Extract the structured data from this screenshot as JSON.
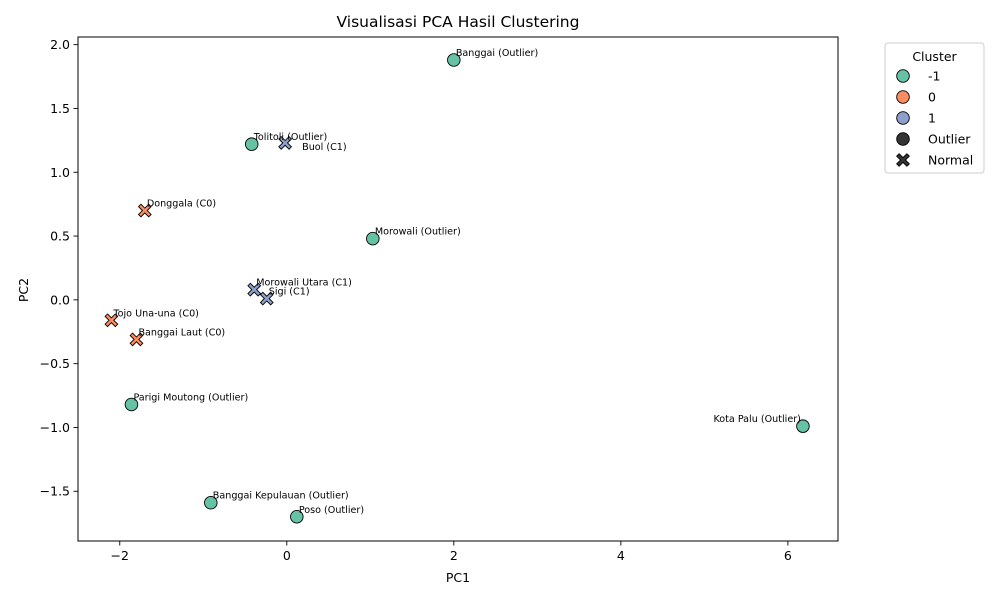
{
  "chart_data": {
    "type": "scatter",
    "title": "Visualisasi PCA Hasil Clustering",
    "xlabel": "PC1",
    "ylabel": "PC2",
    "xlim": [
      -2.5,
      6.6
    ],
    "ylim": [
      -1.89,
      2.06
    ],
    "xticks": [
      -2,
      0,
      2,
      4,
      6
    ],
    "yticks": [
      -1.5,
      -1.0,
      -0.5,
      0.0,
      0.5,
      1.0,
      1.5,
      2.0
    ],
    "xtick_labels": [
      "−2",
      "0",
      "2",
      "4",
      "6"
    ],
    "ytick_labels": [
      "−1.5",
      "−1.0",
      "−0.5",
      "0.0",
      "0.5",
      "1.0",
      "1.5",
      "2.0"
    ],
    "grid": false,
    "legend": {
      "title": "Cluster",
      "placement": "outside-top-right",
      "entries": [
        {
          "label": "-1",
          "marker": "circle",
          "color": "#66c2a5"
        },
        {
          "label": "0",
          "marker": "circle",
          "color": "#fc8d62"
        },
        {
          "label": "1",
          "marker": "circle",
          "color": "#8da0cb"
        },
        {
          "label": "Outlier",
          "marker": "circle",
          "color": "#333333"
        },
        {
          "label": "Normal",
          "marker": "x",
          "color": "#333333"
        }
      ]
    },
    "cluster_colors": {
      "-1": "#66c2a5",
      "0": "#fc8d62",
      "1": "#8da0cb"
    },
    "points": [
      {
        "label": "Banggai (Outlier)",
        "x": 2.0,
        "y": 1.88,
        "cluster": "-1",
        "marker": "circle",
        "label_pos": "right"
      },
      {
        "label": "Tolitoli (Outlier)",
        "x": -0.42,
        "y": 1.22,
        "cluster": "-1",
        "marker": "circle",
        "label_pos": "right"
      },
      {
        "label": "Buol (C1)",
        "x": -0.02,
        "y": 1.23,
        "cluster": "1",
        "marker": "x",
        "label_pos": "right-low"
      },
      {
        "label": "Donggala (C0)",
        "x": -1.7,
        "y": 0.7,
        "cluster": "0",
        "marker": "x",
        "label_pos": "right"
      },
      {
        "label": "Morowali (Outlier)",
        "x": 1.03,
        "y": 0.48,
        "cluster": "-1",
        "marker": "circle",
        "label_pos": "right"
      },
      {
        "label": "Morowali Utara (C1)",
        "x": -0.39,
        "y": 0.08,
        "cluster": "1",
        "marker": "x",
        "label_pos": "right"
      },
      {
        "label": "Sigi (C1)",
        "x": -0.24,
        "y": 0.01,
        "cluster": "1",
        "marker": "x",
        "label_pos": "right"
      },
      {
        "label": "Tojo Una-una (C0)",
        "x": -2.1,
        "y": -0.16,
        "cluster": "0",
        "marker": "x",
        "label_pos": "right"
      },
      {
        "label": "Banggai Laut (C0)",
        "x": -1.8,
        "y": -0.31,
        "cluster": "0",
        "marker": "x",
        "label_pos": "right"
      },
      {
        "label": "Parigi Moutong (Outlier)",
        "x": -1.86,
        "y": -0.82,
        "cluster": "-1",
        "marker": "circle",
        "label_pos": "right"
      },
      {
        "label": "Kota Palu (Outlier)",
        "x": 6.18,
        "y": -0.99,
        "cluster": "-1",
        "marker": "circle",
        "label_pos": "left"
      },
      {
        "label": "Banggai Kepulauan (Outlier)",
        "x": -0.91,
        "y": -1.59,
        "cluster": "-1",
        "marker": "circle",
        "label_pos": "right"
      },
      {
        "label": "Poso (Outlier)",
        "x": 0.12,
        "y": -1.7,
        "cluster": "-1",
        "marker": "circle",
        "label_pos": "right"
      }
    ]
  }
}
